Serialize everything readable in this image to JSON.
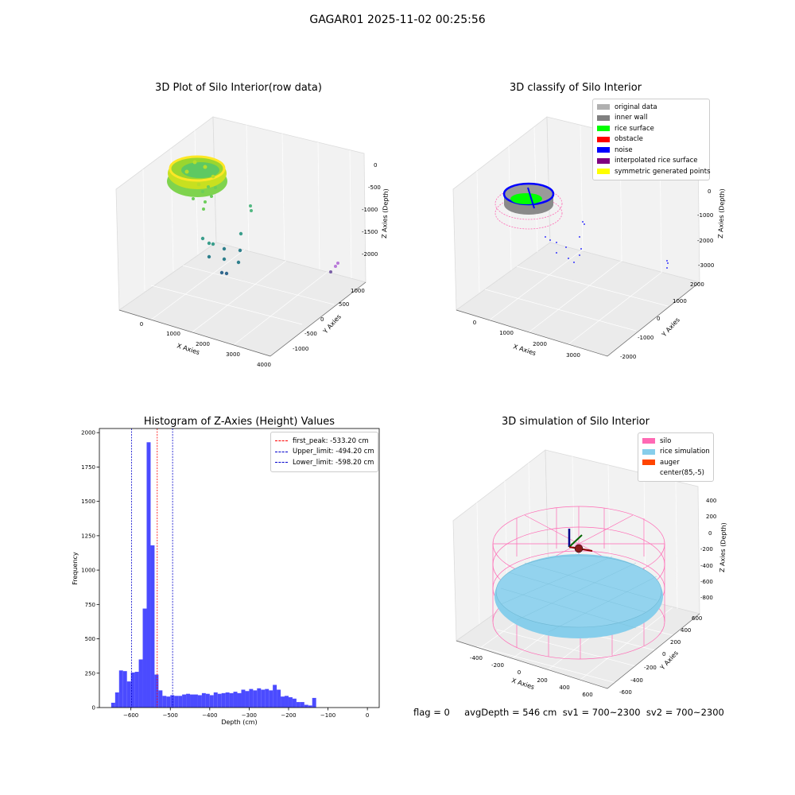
{
  "suptitle": "GAGAR01 2025-11-02 00:25:56",
  "footer": "flag = 0     avgDepth = 546 cm  sv1 = 700~2300  sv2 = 700~2300",
  "chart_data": [
    {
      "type": "scatter",
      "title": "3D Plot of Silo Interior(row data)",
      "xlabel": "X Axies",
      "ylabel": "Y Axies",
      "zlabel": "Z Axies (Depth)",
      "x_ticks": [
        "0",
        "1000",
        "2000",
        "3000",
        "4000"
      ],
      "y_ticks": [
        "-1000",
        "-500",
        "0",
        "500",
        "1000"
      ],
      "z_ticks": [
        "-2000",
        "-1500",
        "-1000",
        "-500",
        "0"
      ],
      "colormap": "viridis",
      "points_note": "dense ring of points near depth -500, sparse points down to about -2000"
    },
    {
      "type": "scatter",
      "title": "3D classify of Silo Interior",
      "xlabel": "X Axies",
      "ylabel": "Y Axies",
      "zlabel": "Z Axies (Depth)",
      "x_ticks": [
        "0",
        "1000",
        "2000",
        "3000"
      ],
      "y_ticks": [
        "-2000",
        "-1000",
        "0",
        "1000",
        "2000"
      ],
      "z_ticks": [
        "-3000",
        "-2000",
        "-1000",
        "0"
      ],
      "legend": [
        {
          "label": "original data",
          "color": "#b0b0b0"
        },
        {
          "label": "inner wall",
          "color": "#808080"
        },
        {
          "label": "rice surface",
          "color": "#00ff00"
        },
        {
          "label": "obstacle",
          "color": "#ff0000"
        },
        {
          "label": "noise",
          "color": "#0000ff"
        },
        {
          "label": "interpolated rice surface",
          "color": "#800080"
        },
        {
          "label": "symmetric generated points",
          "color": "#ffff00"
        }
      ]
    },
    {
      "type": "bar",
      "title": "Histogram of Z-Axies (Height) Values",
      "xlabel": "Depth (cm)",
      "ylabel": "Frequency",
      "xlim": [
        -680,
        30
      ],
      "ylim": [
        0,
        2030
      ],
      "x_ticks": [
        -600,
        -500,
        -400,
        -300,
        -200,
        -100,
        0
      ],
      "y_ticks": [
        0,
        250,
        500,
        750,
        1000,
        1250,
        1500,
        1750,
        2000
      ],
      "bin_width": 10,
      "bin_starts": [
        -660,
        -650,
        -640,
        -630,
        -620,
        -610,
        -600,
        -590,
        -580,
        -570,
        -560,
        -550,
        -540,
        -530,
        -520,
        -510,
        -500,
        -490,
        -480,
        -470,
        -460,
        -450,
        -440,
        -430,
        -420,
        -410,
        -400,
        -390,
        -380,
        -370,
        -360,
        -350,
        -340,
        -330,
        -320,
        -310,
        -300,
        -290,
        -280,
        -270,
        -260,
        -250,
        -240,
        -230,
        -220,
        -210,
        -200,
        -190,
        -180,
        -170,
        -160,
        -150,
        -140,
        -130,
        -120,
        -110,
        -100,
        -90,
        -80,
        -70,
        -60,
        -50,
        -40,
        -30,
        -20,
        -10,
        0
      ],
      "values": [
        0,
        35,
        110,
        270,
        265,
        190,
        255,
        260,
        350,
        720,
        1930,
        1180,
        240,
        125,
        85,
        80,
        90,
        85,
        85,
        95,
        100,
        95,
        95,
        90,
        105,
        100,
        90,
        110,
        100,
        105,
        110,
        105,
        115,
        105,
        130,
        120,
        135,
        125,
        140,
        130,
        135,
        125,
        165,
        130,
        80,
        85,
        75,
        65,
        40,
        40,
        20,
        15,
        70,
        0,
        0,
        0,
        0,
        0,
        0,
        0,
        0,
        0,
        0,
        0,
        0,
        0,
        0
      ],
      "bar_color": "#4b4bff",
      "vlines": [
        {
          "label": "first_peak: -533.20 cm",
          "x": -533.2,
          "color": "#ff0000"
        },
        {
          "label": "Upper_limit: -494.20 cm",
          "x": -494.2,
          "color": "#0000cc"
        },
        {
          "label": "Lower_limit: -598.20 cm",
          "x": -598.2,
          "color": "#0000cc"
        }
      ]
    },
    {
      "type": "surface",
      "title": "3D simulation of Silo Interior",
      "xlabel": "X Axies",
      "ylabel": "Y Axies",
      "zlabel": "Z Axies (Depth)",
      "x_ticks": [
        "-400",
        "-200",
        "0",
        "200",
        "400",
        "600"
      ],
      "y_ticks": [
        "-600",
        "-400",
        "-200",
        "0",
        "200",
        "400",
        "600"
      ],
      "z_ticks": [
        "-800",
        "-600",
        "-400",
        "-200",
        "0",
        "200",
        "400"
      ],
      "legend": [
        {
          "label": "silo",
          "color": "#ff69b4"
        },
        {
          "label": "rice simulation",
          "color": "#87ceeb"
        },
        {
          "label": "auger",
          "color": "#ff4500"
        },
        {
          "label": "center(85,-5)",
          "color": ""
        }
      ]
    }
  ]
}
